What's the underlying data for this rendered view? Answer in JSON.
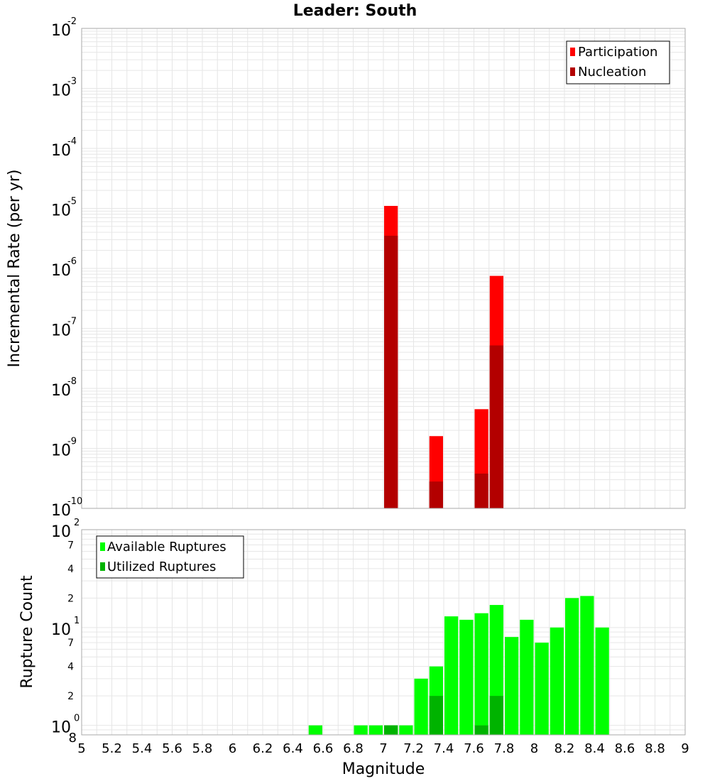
{
  "colors": {
    "participation": "#ff0000",
    "nucleation": "#b30000",
    "available": "#00ff00",
    "utilized": "#00b300",
    "grid": "#e6e6e6",
    "frame": "#aaaaaa"
  },
  "chart_data": [
    {
      "type": "bar",
      "title": "Leader: South",
      "xlabel": "",
      "ylabel": "Incremental Rate (per yr)",
      "xlim": [
        5,
        9
      ],
      "ylim": [
        1e-10,
        0.01
      ],
      "yscale": "log",
      "y_ticks": [
        {
          "base": "10",
          "exp": "-2",
          "value": 0.01
        },
        {
          "base": "10",
          "exp": "-3",
          "value": 0.001
        },
        {
          "base": "10",
          "exp": "-4",
          "value": 0.0001
        },
        {
          "base": "10",
          "exp": "-5",
          "value": 1e-05
        },
        {
          "base": "10",
          "exp": "-6",
          "value": 1e-06
        },
        {
          "base": "10",
          "exp": "-7",
          "value": 1e-07
        },
        {
          "base": "10",
          "exp": "-8",
          "value": 1e-08
        },
        {
          "base": "10",
          "exp": "-9",
          "value": 1e-09
        },
        {
          "base": "10",
          "exp": "-10",
          "value": 1e-10
        }
      ],
      "legend": {
        "position": "top-right"
      },
      "series": [
        {
          "name": "Participation",
          "bin_width": 0.1,
          "points": [
            [
              7.05,
              1.1e-05
            ],
            [
              7.35,
              1.6e-09
            ],
            [
              7.65,
              4.5e-09
            ],
            [
              7.75,
              7.5e-07
            ]
          ]
        },
        {
          "name": "Nucleation",
          "bin_width": 0.1,
          "points": [
            [
              7.05,
              3.5e-06
            ],
            [
              7.35,
              2.8e-10
            ],
            [
              7.65,
              3.8e-10
            ],
            [
              7.75,
              5.2e-08
            ]
          ]
        }
      ]
    },
    {
      "type": "bar",
      "title": "",
      "xlabel": "Magnitude",
      "ylabel": "Rupture Count",
      "xlim": [
        5,
        9
      ],
      "ylim": [
        0.8,
        100
      ],
      "yscale": "log",
      "x_ticks": [
        "5",
        "5.2",
        "5.4",
        "5.6",
        "5.8",
        "6",
        "6.2",
        "6.4",
        "6.6",
        "6.8",
        "7",
        "7.2",
        "7.4",
        "7.6",
        "7.8",
        "8",
        "8.2",
        "8.4",
        "8.6",
        "8.8",
        "9"
      ],
      "y_major_ticks": [
        {
          "base": "10",
          "exp": "2",
          "value": 100
        },
        {
          "base": "10",
          "exp": "1",
          "value": 10
        },
        {
          "base": "10",
          "exp": "0",
          "value": 1
        }
      ],
      "y_minor_ticks": [
        {
          "label": "7",
          "value": 70
        },
        {
          "label": "4",
          "value": 40
        },
        {
          "label": "2",
          "value": 20
        },
        {
          "label": "7",
          "value": 7
        },
        {
          "label": "4",
          "value": 4
        },
        {
          "label": "2",
          "value": 2
        },
        {
          "label": "8",
          "value": 0.8
        }
      ],
      "legend": {
        "position": "top-left"
      },
      "series": [
        {
          "name": "Available Ruptures",
          "bin_width": 0.1,
          "points": [
            [
              6.55,
              1
            ],
            [
              6.85,
              1
            ],
            [
              6.95,
              1
            ],
            [
              7.05,
              1
            ],
            [
              7.15,
              1
            ],
            [
              7.25,
              3
            ],
            [
              7.35,
              4
            ],
            [
              7.45,
              13
            ],
            [
              7.55,
              12
            ],
            [
              7.65,
              14
            ],
            [
              7.75,
              17
            ],
            [
              7.85,
              8
            ],
            [
              7.95,
              12
            ],
            [
              8.05,
              7
            ],
            [
              8.15,
              10
            ],
            [
              8.25,
              20
            ],
            [
              8.35,
              21
            ],
            [
              8.45,
              10
            ]
          ]
        },
        {
          "name": "Utilized Ruptures",
          "bin_width": 0.1,
          "points": [
            [
              7.05,
              1
            ],
            [
              7.35,
              2
            ],
            [
              7.65,
              1
            ],
            [
              7.75,
              2
            ]
          ]
        }
      ]
    }
  ]
}
